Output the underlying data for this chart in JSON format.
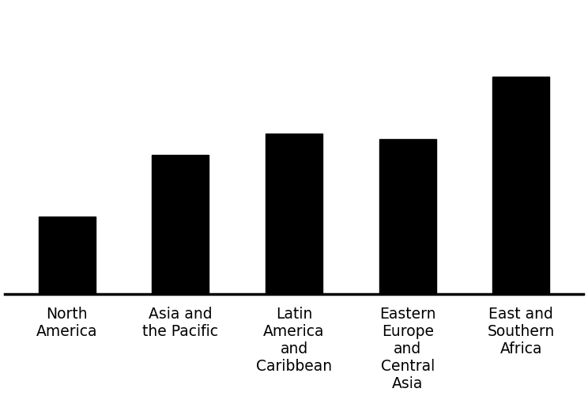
{
  "categories": [
    "North\nAmerica",
    "Asia and\nthe Pacific",
    "Latin\nAmerica\nand\nCaribbean",
    "Eastern\nEurope\nand\nCentral\nAsia",
    "East and\nSouthern\nAfrica"
  ],
  "values": [
    7.5,
    13.5,
    15.5,
    15.0,
    21.0
  ],
  "bar_color": "#000000",
  "background_color": "#ffffff",
  "ylim": [
    0,
    28
  ],
  "bar_width": 0.5,
  "tick_fontsize": 13.5,
  "spine_color": "#000000",
  "spine_linewidth": 2.5,
  "figsize": [
    7.44,
    5.01
  ],
  "dpi": 100
}
